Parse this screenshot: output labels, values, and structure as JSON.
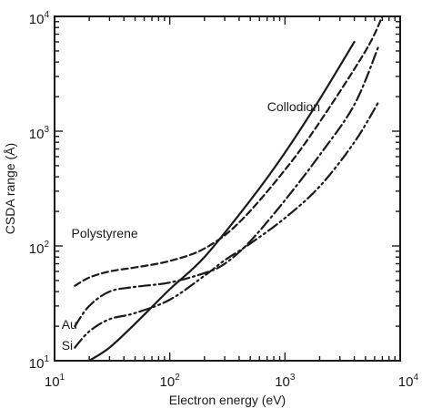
{
  "chart_data": {
    "type": "line",
    "title": "",
    "xlabel": "Electron energy (eV)",
    "ylabel": "CSDA range (Å)",
    "x_scale": "log",
    "y_scale": "log",
    "xlim": [
      10,
      10000
    ],
    "ylim": [
      10,
      10000
    ],
    "grid": false,
    "x_ticks": [
      {
        "base": "10",
        "exp": "1",
        "value": 10
      },
      {
        "base": "10",
        "exp": "2",
        "value": 100
      },
      {
        "base": "10",
        "exp": "3",
        "value": 1000
      },
      {
        "base": "10",
        "exp": "4",
        "value": 10000
      }
    ],
    "y_ticks": [
      {
        "base": "10",
        "exp": "1",
        "value": 10
      },
      {
        "base": "10",
        "exp": "2",
        "value": 100
      },
      {
        "base": "10",
        "exp": "3",
        "value": 1000
      },
      {
        "base": "10",
        "exp": "4",
        "value": 10000
      }
    ],
    "series": [
      {
        "name": "Polystyrene",
        "dash": "dashed",
        "label_at": [
          14,
          118
        ],
        "x": [
          15,
          20,
          30,
          50,
          100,
          200,
          400,
          1000,
          2000,
          5000,
          7000
        ],
        "y": [
          45,
          53,
          60,
          65,
          74,
          95,
          160,
          460,
          1200,
          5000,
          10000
        ]
      },
      {
        "name": "Collodion",
        "dash": "solid",
        "label_at": [
          700,
          1500
        ],
        "x": [
          20,
          30,
          50,
          100,
          200,
          500,
          1000,
          2000,
          4000
        ],
        "y": [
          10,
          13,
          21,
          42,
          80,
          250,
          650,
          1900,
          6000
        ]
      },
      {
        "name": "Au",
        "dash": "dash-dot",
        "label_at": [
          11.5,
          19
        ],
        "x": [
          15,
          20,
          30,
          50,
          100,
          200,
          300,
          500,
          1000,
          2000,
          4000,
          6500
        ],
        "y": [
          20,
          30,
          40,
          44,
          48,
          58,
          70,
          110,
          250,
          620,
          1700,
          5500
        ]
      },
      {
        "name": "Si",
        "dash": "dash-dot-dot",
        "label_at": [
          11.5,
          12.5
        ],
        "x": [
          15,
          20,
          30,
          50,
          100,
          200,
          300,
          500,
          1000,
          2000,
          4000,
          6500
        ],
        "y": [
          13,
          18,
          23,
          26,
          34,
          55,
          75,
          105,
          175,
          330,
          800,
          1800
        ]
      }
    ]
  }
}
